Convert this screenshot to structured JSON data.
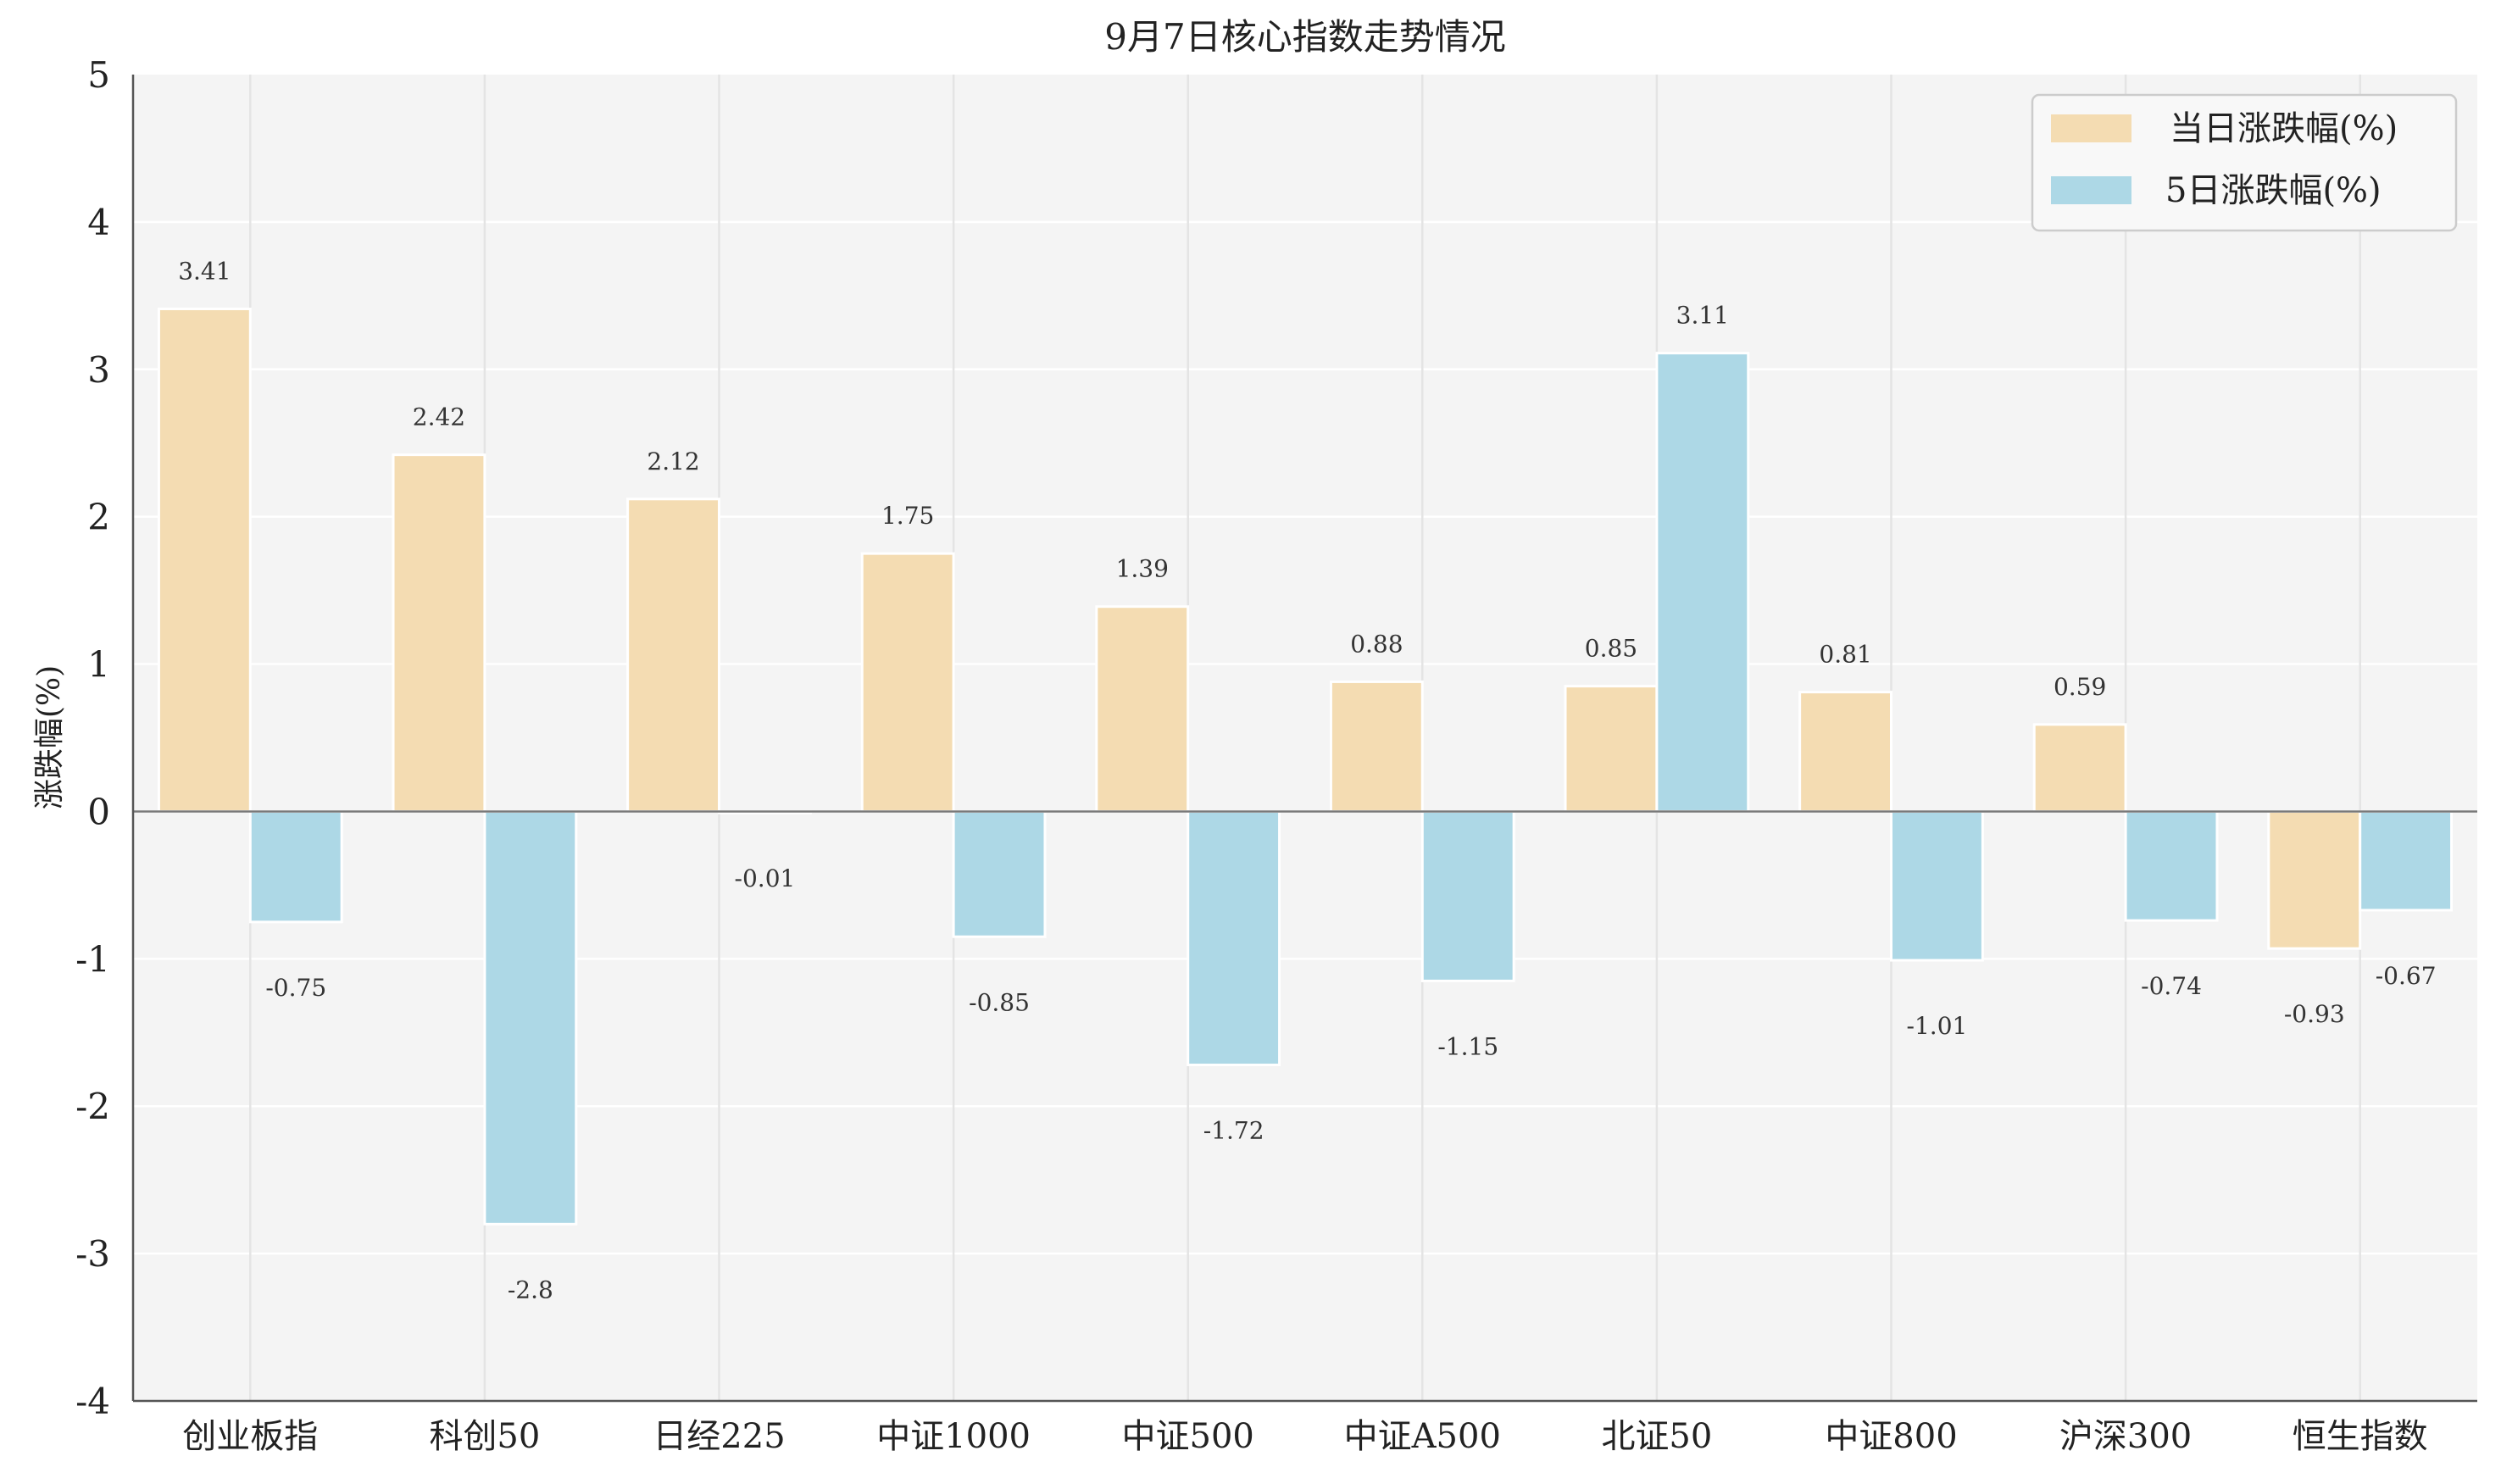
{
  "chart_data": {
    "type": "bar",
    "title": "9月7日核心指数走势情况",
    "xlabel": "",
    "ylabel": "涨跌幅(%)",
    "ylim": [
      -4,
      5
    ],
    "yticks": [
      "-4",
      "-3",
      "-2",
      "-1",
      "0",
      "1",
      "2",
      "3",
      "4",
      "5"
    ],
    "grid": true,
    "legend_position": "top-right",
    "categories": [
      "创业板指",
      "科创50",
      "日经225",
      "中证1000",
      "中证500",
      "中证A500",
      "北证50",
      "中证800",
      "沪深300",
      "恒生指数"
    ],
    "series": [
      {
        "name": "当日涨跌幅(%)",
        "color": "#F4DCB2",
        "values": [
          3.41,
          2.42,
          2.12,
          1.75,
          1.39,
          0.88,
          0.85,
          0.81,
          0.59,
          -0.93
        ]
      },
      {
        "name": "5日涨跌幅(%)",
        "color": "#ADD8E6",
        "values": [
          -0.75,
          -2.8,
          -0.01,
          -0.85,
          -1.72,
          -1.15,
          3.11,
          -1.01,
          -0.74,
          -0.67
        ]
      }
    ]
  }
}
